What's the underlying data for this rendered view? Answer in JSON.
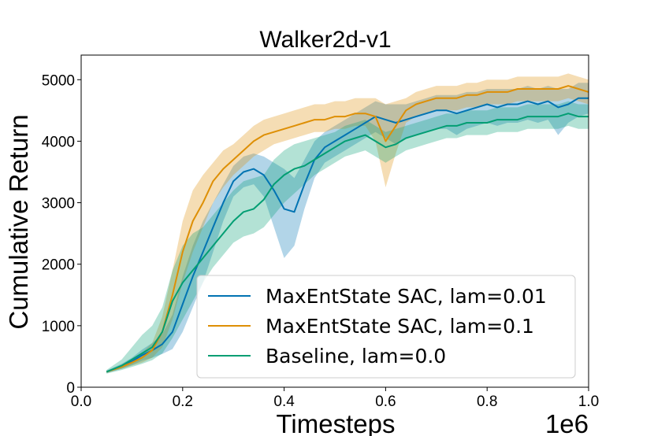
{
  "chart_data": {
    "type": "line",
    "title": "Walker2d-v1",
    "xlabel": "Timesteps",
    "ylabel": "Cumulative Return",
    "x_offset_text": "1e6",
    "xlim": [
      0.0,
      1.0
    ],
    "ylim": [
      0,
      5400
    ],
    "x_ticks": [
      0.0,
      0.2,
      0.4,
      0.6,
      0.8,
      1.0
    ],
    "x_tick_labels": [
      "0.0",
      "0.2",
      "0.4",
      "0.6",
      "0.8",
      "1.0"
    ],
    "y_ticks": [
      0,
      1000,
      2000,
      3000,
      4000,
      5000
    ],
    "y_tick_labels": [
      "0",
      "1000",
      "2000",
      "3000",
      "4000",
      "5000"
    ],
    "grid": false,
    "legend_position": "lower-right",
    "x": [
      0.05,
      0.08,
      0.1,
      0.12,
      0.14,
      0.16,
      0.18,
      0.2,
      0.22,
      0.24,
      0.26,
      0.28,
      0.3,
      0.32,
      0.34,
      0.36,
      0.38,
      0.4,
      0.42,
      0.44,
      0.46,
      0.48,
      0.5,
      0.52,
      0.54,
      0.56,
      0.58,
      0.6,
      0.62,
      0.64,
      0.66,
      0.68,
      0.7,
      0.72,
      0.74,
      0.76,
      0.78,
      0.8,
      0.82,
      0.84,
      0.86,
      0.88,
      0.9,
      0.92,
      0.94,
      0.96,
      0.98,
      1.0
    ],
    "series": [
      {
        "name": "MaxEntState SAC, lam=0.01",
        "color": "#0173b2",
        "values": [
          250,
          340,
          420,
          520,
          600,
          700,
          900,
          1350,
          1800,
          2200,
          2600,
          3000,
          3350,
          3500,
          3550,
          3450,
          3200,
          2900,
          2850,
          3300,
          3700,
          3900,
          4000,
          4100,
          4200,
          4300,
          4400,
          4350,
          4300,
          4350,
          4400,
          4450,
          4500,
          4500,
          4450,
          4500,
          4550,
          4600,
          4550,
          4600,
          4600,
          4650,
          4600,
          4650,
          4550,
          4600,
          4700,
          4700
        ],
        "lower": [
          230,
          300,
          360,
          430,
          480,
          540,
          620,
          900,
          1300,
          1700,
          2200,
          2700,
          3100,
          3250,
          3300,
          3100,
          2600,
          2100,
          2300,
          2900,
          3400,
          3650,
          3750,
          3850,
          3950,
          4050,
          4150,
          4050,
          3950,
          4050,
          4100,
          4150,
          4200,
          4200,
          4100,
          4200,
          4250,
          4300,
          4250,
          4300,
          4300,
          4350,
          4300,
          4350,
          4100,
          4300,
          4400,
          4450
        ],
        "upper": [
          270,
          380,
          480,
          610,
          720,
          860,
          1180,
          1800,
          2300,
          2700,
          3000,
          3300,
          3600,
          3750,
          3800,
          3750,
          3650,
          3550,
          3400,
          3700,
          4000,
          4150,
          4250,
          4350,
          4450,
          4550,
          4650,
          4600,
          4600,
          4600,
          4650,
          4700,
          4750,
          4750,
          4750,
          4800,
          4800,
          4850,
          4850,
          4850,
          4850,
          4900,
          4850,
          4900,
          4850,
          4850,
          4950,
          4950
        ]
      },
      {
        "name": "MaxEntState SAC, lam=0.1",
        "color": "#de8f05",
        "values": [
          250,
          330,
          400,
          480,
          600,
          900,
          1500,
          2200,
          2700,
          3000,
          3350,
          3550,
          3700,
          3850,
          4000,
          4100,
          4150,
          4200,
          4250,
          4300,
          4350,
          4350,
          4400,
          4400,
          4450,
          4450,
          4400,
          4000,
          4250,
          4500,
          4600,
          4650,
          4700,
          4700,
          4700,
          4750,
          4750,
          4800,
          4800,
          4800,
          4850,
          4850,
          4850,
          4850,
          4850,
          4900,
          4850,
          4800
        ],
        "lower": [
          240,
          300,
          350,
          400,
          480,
          650,
          1100,
          1700,
          2200,
          2600,
          3000,
          3250,
          3450,
          3600,
          3750,
          3850,
          3950,
          4000,
          4050,
          4100,
          4150,
          4150,
          4200,
          4200,
          4250,
          4250,
          4000,
          3250,
          3800,
          4300,
          4400,
          4450,
          4500,
          4500,
          4500,
          4550,
          4550,
          4600,
          4600,
          4600,
          4650,
          4650,
          4650,
          4650,
          4650,
          4700,
          4650,
          4600
        ],
        "upper": [
          260,
          360,
          450,
          560,
          720,
          1150,
          1900,
          2700,
          3200,
          3450,
          3650,
          3850,
          3950,
          4100,
          4250,
          4350,
          4400,
          4450,
          4500,
          4550,
          4600,
          4600,
          4650,
          4650,
          4700,
          4700,
          4700,
          4600,
          4650,
          4700,
          4800,
          4850,
          4900,
          4900,
          4900,
          4950,
          4950,
          5000,
          5000,
          5000,
          5050,
          5050,
          5050,
          5050,
          5050,
          5100,
          5050,
          5000
        ]
      },
      {
        "name": "Baseline, lam=0.0",
        "color": "#029e73",
        "values": [
          250,
          350,
          450,
          550,
          650,
          900,
          1400,
          1700,
          1900,
          2100,
          2300,
          2500,
          2700,
          2850,
          2900,
          3050,
          3300,
          3450,
          3550,
          3600,
          3700,
          3800,
          3900,
          4000,
          4050,
          4100,
          4000,
          3900,
          3950,
          4050,
          4100,
          4150,
          4200,
          4250,
          4250,
          4300,
          4300,
          4300,
          4350,
          4350,
          4350,
          4400,
          4400,
          4400,
          4400,
          4450,
          4400,
          4400
        ],
        "lower": [
          220,
          280,
          330,
          380,
          440,
          550,
          800,
          1100,
          1400,
          1700,
          1950,
          2150,
          2350,
          2450,
          2500,
          2600,
          2800,
          3000,
          3150,
          3300,
          3450,
          3550,
          3650,
          3750,
          3800,
          3850,
          3750,
          3650,
          3750,
          3850,
          3900,
          3950,
          4000,
          4050,
          4050,
          4100,
          4100,
          4100,
          4150,
          4150,
          4150,
          4200,
          4200,
          4200,
          4200,
          4250,
          4200,
          4200
        ],
        "upper": [
          280,
          450,
          650,
          850,
          1000,
          1300,
          1900,
          2300,
          2500,
          2600,
          2800,
          3000,
          3200,
          3350,
          3400,
          3450,
          3700,
          3850,
          3950,
          4000,
          4050,
          4100,
          4150,
          4250,
          4300,
          4350,
          4250,
          4150,
          4200,
          4250,
          4300,
          4350,
          4400,
          4450,
          4450,
          4500,
          4500,
          4500,
          4550,
          4550,
          4550,
          4600,
          4600,
          4600,
          4600,
          4650,
          4600,
          4600
        ]
      }
    ]
  }
}
